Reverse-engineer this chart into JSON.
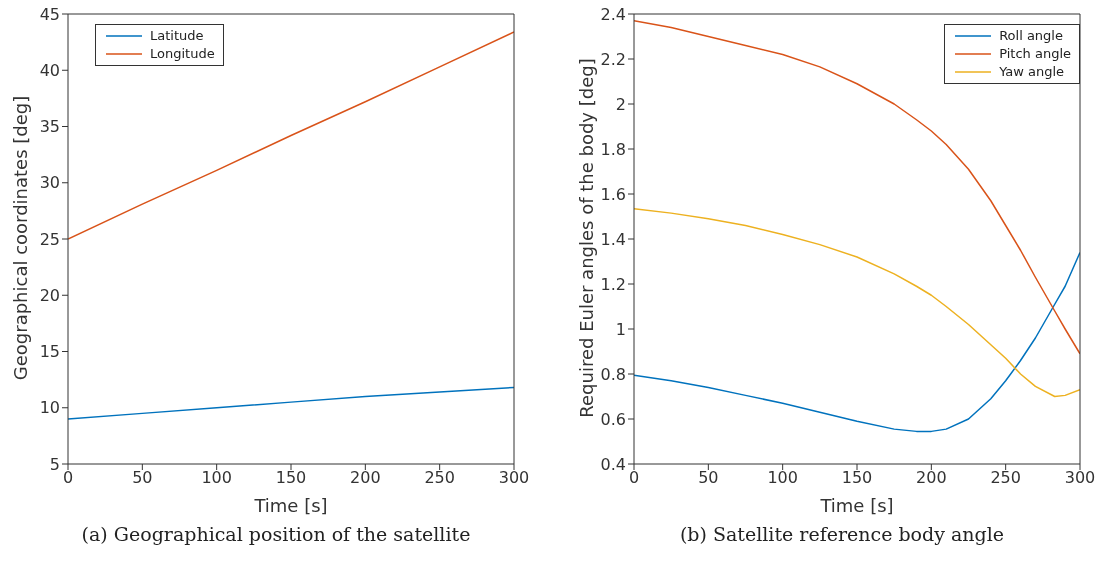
{
  "chart_data": [
    {
      "type": "line",
      "xlabel": "Time [s]",
      "ylabel": "Geographical coordinates [deg]",
      "annotations": [
        "(a) Geographical position of the satellite"
      ],
      "x": [
        0,
        50,
        100,
        150,
        200,
        250,
        300
      ],
      "xlim": [
        0,
        300
      ],
      "xticks": [
        0,
        50,
        100,
        150,
        200,
        250,
        300
      ],
      "ylim": [
        5,
        45
      ],
      "yticks": [
        5,
        10,
        15,
        20,
        25,
        30,
        35,
        40,
        45
      ],
      "grid": false,
      "legend": "top left",
      "marker": "none",
      "line_style": "solid",
      "series": [
        {
          "name": "Latitude",
          "color": "#0072bd",
          "values": [
            9.0,
            9.5,
            10.0,
            10.5,
            11.0,
            11.4,
            11.8
          ]
        },
        {
          "name": "Longitude",
          "color": "#d95319",
          "values": [
            25.0,
            28.1,
            31.1,
            34.2,
            37.2,
            40.3,
            43.4
          ]
        }
      ]
    },
    {
      "type": "line",
      "xlabel": "Time [s]",
      "ylabel": "Required Euler angles of the body [deg]",
      "annotations": [
        "(b) Satellite reference body angle"
      ],
      "x": [
        0,
        25,
        50,
        75,
        100,
        125,
        150,
        175,
        190,
        200,
        210,
        225,
        240,
        250,
        260,
        270,
        283,
        290,
        300
      ],
      "xlim": [
        0,
        300
      ],
      "xticks": [
        0,
        50,
        100,
        150,
        200,
        250,
        300
      ],
      "ylim": [
        0.4,
        2.4
      ],
      "yticks": [
        0.4,
        0.6,
        0.8,
        1,
        1.2,
        1.4,
        1.6,
        1.8,
        2,
        2.2,
        2.4
      ],
      "grid": false,
      "legend": "top right",
      "marker": "none",
      "line_style": "solid",
      "series": [
        {
          "name": "Roll angle",
          "color": "#0072bd",
          "values": [
            0.795,
            0.77,
            0.74,
            0.705,
            0.67,
            0.63,
            0.59,
            0.555,
            0.545,
            0.545,
            0.555,
            0.6,
            0.69,
            0.77,
            0.86,
            0.96,
            1.11,
            1.19,
            1.34
          ]
        },
        {
          "name": "Pitch angle",
          "color": "#d95319",
          "values": [
            2.37,
            2.34,
            2.3,
            2.26,
            2.22,
            2.165,
            2.09,
            2.0,
            1.93,
            1.88,
            1.82,
            1.71,
            1.57,
            1.46,
            1.35,
            1.23,
            1.08,
            1.0,
            0.89
          ]
        },
        {
          "name": "Yaw angle",
          "color": "#edb120",
          "values": [
            1.535,
            1.515,
            1.49,
            1.46,
            1.42,
            1.375,
            1.32,
            1.245,
            1.19,
            1.15,
            1.1,
            1.02,
            0.93,
            0.87,
            0.8,
            0.745,
            0.7,
            0.705,
            0.73
          ]
        }
      ]
    }
  ]
}
